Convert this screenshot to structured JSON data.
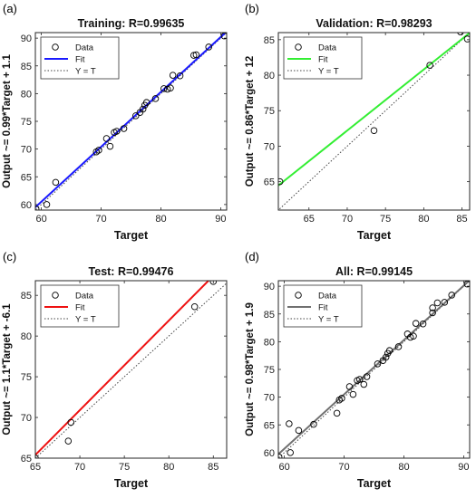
{
  "colors": {
    "training_fit": "#1a1aff",
    "validation_fit": "#33ee33",
    "test_fit": "#ee1111",
    "all_fit": "#707070",
    "axis": "#262626",
    "marker": "#000000"
  },
  "chart_data": [
    {
      "type": "scatter",
      "panel_label": "(a)",
      "title": "Training: R=0.99635",
      "xlabel": "Target",
      "ylabel": "Output ~= 0.99*Target + 1.1",
      "xlim": [
        59,
        91
      ],
      "ylim": [
        59,
        91
      ],
      "xticks": [
        60,
        70,
        80,
        90
      ],
      "yticks": [
        60,
        65,
        70,
        75,
        80,
        85,
        90
      ],
      "fit": {
        "slope": 0.99,
        "intercept": 1.1
      },
      "legend": {
        "placement": "top-left",
        "entries": [
          "Data",
          "Fit",
          "Y = T"
        ]
      },
      "points": [
        [
          59.1,
          59.2
        ],
        [
          60.9,
          60.0
        ],
        [
          62.4,
          64.0
        ],
        [
          69.2,
          69.5
        ],
        [
          69.6,
          69.8
        ],
        [
          70.9,
          71.9
        ],
        [
          71.5,
          70.5
        ],
        [
          72.2,
          73.0
        ],
        [
          72.6,
          73.2
        ],
        [
          73.8,
          73.7
        ],
        [
          75.8,
          76.0
        ],
        [
          76.5,
          76.6
        ],
        [
          77.0,
          77.2
        ],
        [
          77.3,
          77.9
        ],
        [
          77.6,
          78.4
        ],
        [
          79.1,
          79.1
        ],
        [
          80.5,
          80.9
        ],
        [
          81.1,
          80.8
        ],
        [
          81.6,
          81.0
        ],
        [
          82.0,
          83.3
        ],
        [
          83.2,
          83.2
        ],
        [
          85.5,
          86.9
        ],
        [
          85.9,
          87.0
        ],
        [
          88.0,
          88.4
        ],
        [
          90.6,
          90.4
        ]
      ]
    },
    {
      "type": "scatter",
      "panel_label": "(b)",
      "title": "Validation: R=0.98293",
      "xlabel": "Target",
      "ylabel": "Output ~= 0.86*Target + 12",
      "xlim": [
        61,
        86
      ],
      "ylim": [
        61,
        86
      ],
      "xticks": [
        65,
        70,
        75,
        80,
        85
      ],
      "yticks": [
        65,
        70,
        75,
        80,
        85
      ],
      "fit": {
        "slope": 0.86,
        "intercept": 12
      },
      "legend": {
        "placement": "top-left",
        "entries": [
          "Data",
          "Fit",
          "Y = T"
        ]
      },
      "points": [
        [
          61.2,
          65.0
        ],
        [
          73.5,
          72.2
        ],
        [
          80.8,
          81.4
        ],
        [
          84.8,
          86.1
        ],
        [
          85.7,
          85.1
        ]
      ]
    },
    {
      "type": "scatter",
      "panel_label": "(c)",
      "title": "Test: R=0.99476",
      "xlabel": "Target",
      "ylabel": "Output ~= 1.1*Target + -6.1",
      "xlim": [
        65,
        86.5
      ],
      "ylim": [
        65,
        86.8
      ],
      "xticks": [
        65,
        70,
        75,
        80,
        85
      ],
      "yticks": [
        65,
        70,
        75,
        80,
        85
      ],
      "fit": {
        "slope": 1.1,
        "intercept": -6.1
      },
      "legend": {
        "placement": "top-left",
        "entries": [
          "Data",
          "Fit",
          "Y = T"
        ]
      },
      "points": [
        [
          65.0,
          65.0
        ],
        [
          68.7,
          67.1
        ],
        [
          69.0,
          69.4
        ],
        [
          82.9,
          83.6
        ],
        [
          85.0,
          86.7
        ]
      ]
    },
    {
      "type": "scatter",
      "panel_label": "(d)",
      "title": "All: R=0.99145",
      "xlabel": "Target",
      "ylabel": "Output ~= 0.98*Target + 1.9",
      "xlim": [
        59,
        91
      ],
      "ylim": [
        59,
        91
      ],
      "xticks": [
        60,
        70,
        80,
        90
      ],
      "yticks": [
        60,
        65,
        70,
        75,
        80,
        85,
        90
      ],
      "fit": {
        "slope": 0.98,
        "intercept": 1.9
      },
      "legend": {
        "placement": "top-left",
        "entries": [
          "Data",
          "Fit",
          "Y = T"
        ]
      },
      "points": [
        [
          59.1,
          59.2
        ],
        [
          60.8,
          65.2
        ],
        [
          61.0,
          60.0
        ],
        [
          62.4,
          64.0
        ],
        [
          64.9,
          65.1
        ],
        [
          68.8,
          67.1
        ],
        [
          69.2,
          69.5
        ],
        [
          69.6,
          69.8
        ],
        [
          70.9,
          71.9
        ],
        [
          71.5,
          70.5
        ],
        [
          72.2,
          73.0
        ],
        [
          72.6,
          73.2
        ],
        [
          73.3,
          72.3
        ],
        [
          73.8,
          73.7
        ],
        [
          75.6,
          76.0
        ],
        [
          76.5,
          76.6
        ],
        [
          77.0,
          77.2
        ],
        [
          77.3,
          77.9
        ],
        [
          77.6,
          78.4
        ],
        [
          79.1,
          79.1
        ],
        [
          80.6,
          81.4
        ],
        [
          81.1,
          80.8
        ],
        [
          81.6,
          81.0
        ],
        [
          82.0,
          83.3
        ],
        [
          83.2,
          83.2
        ],
        [
          84.8,
          86.1
        ],
        [
          84.8,
          85.2
        ],
        [
          85.6,
          87.0
        ],
        [
          86.8,
          87.1
        ],
        [
          88.0,
          88.4
        ],
        [
          90.6,
          90.4
        ]
      ]
    }
  ]
}
